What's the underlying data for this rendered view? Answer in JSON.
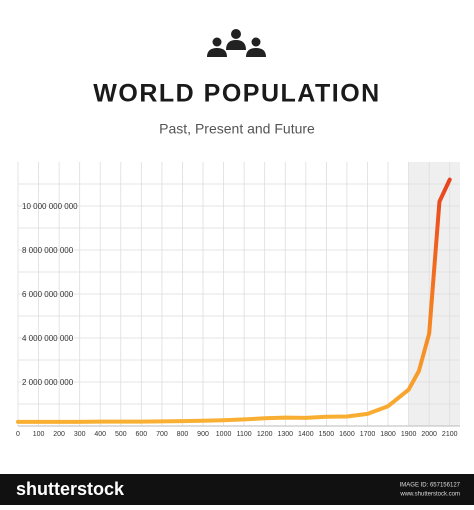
{
  "chart_data": {
    "type": "line",
    "title": "WORLD POPULATION",
    "subtitle": "Past, Present and Future",
    "x": [
      0,
      100,
      200,
      300,
      400,
      500,
      600,
      700,
      800,
      900,
      1000,
      1100,
      1200,
      1300,
      1400,
      1500,
      1600,
      1700,
      1800,
      1900,
      1950,
      2000,
      2050,
      2100
    ],
    "series": [
      {
        "values": [
          190000000,
          190000000,
          190000000,
          190000000,
          200000000,
          200000000,
          200000000,
          210000000,
          220000000,
          240000000,
          260000000,
          300000000,
          350000000,
          380000000,
          370000000,
          420000000,
          430000000,
          550000000,
          900000000,
          1650000000,
          2500000000,
          4200000000,
          10200000000,
          11200000000
        ],
        "gradient_colors": [
          "#f9b233",
          "#f47b20",
          "#e8431f"
        ]
      }
    ],
    "xlim": [
      0,
      2150
    ],
    "ylim": [
      0,
      12000000000
    ],
    "xticks": [
      0,
      100,
      200,
      300,
      400,
      500,
      600,
      700,
      800,
      900,
      1000,
      1100,
      1200,
      1300,
      1400,
      1500,
      1600,
      1700,
      1800,
      1900,
      2000,
      2100
    ],
    "yticks": [
      {
        "value": 2000000000,
        "label": "2 000 000 000"
      },
      {
        "value": 4000000000,
        "label": "4 000 000 000"
      },
      {
        "value": 6000000000,
        "label": "6 000 000 000"
      },
      {
        "value": 8000000000,
        "label": "8 000 000 000"
      },
      {
        "value": 10000000000,
        "label": "10 000 000 000"
      }
    ],
    "minor_yticks": [
      1000000000,
      3000000000,
      5000000000,
      7000000000,
      9000000000,
      11000000000
    ],
    "shaded_xrange": [
      1900,
      2150
    ],
    "grid": true
  },
  "footer": {
    "brand": "shutterstock",
    "image_id": "IMAGE ID: 657156127",
    "url": "www.shutterstock.com"
  }
}
